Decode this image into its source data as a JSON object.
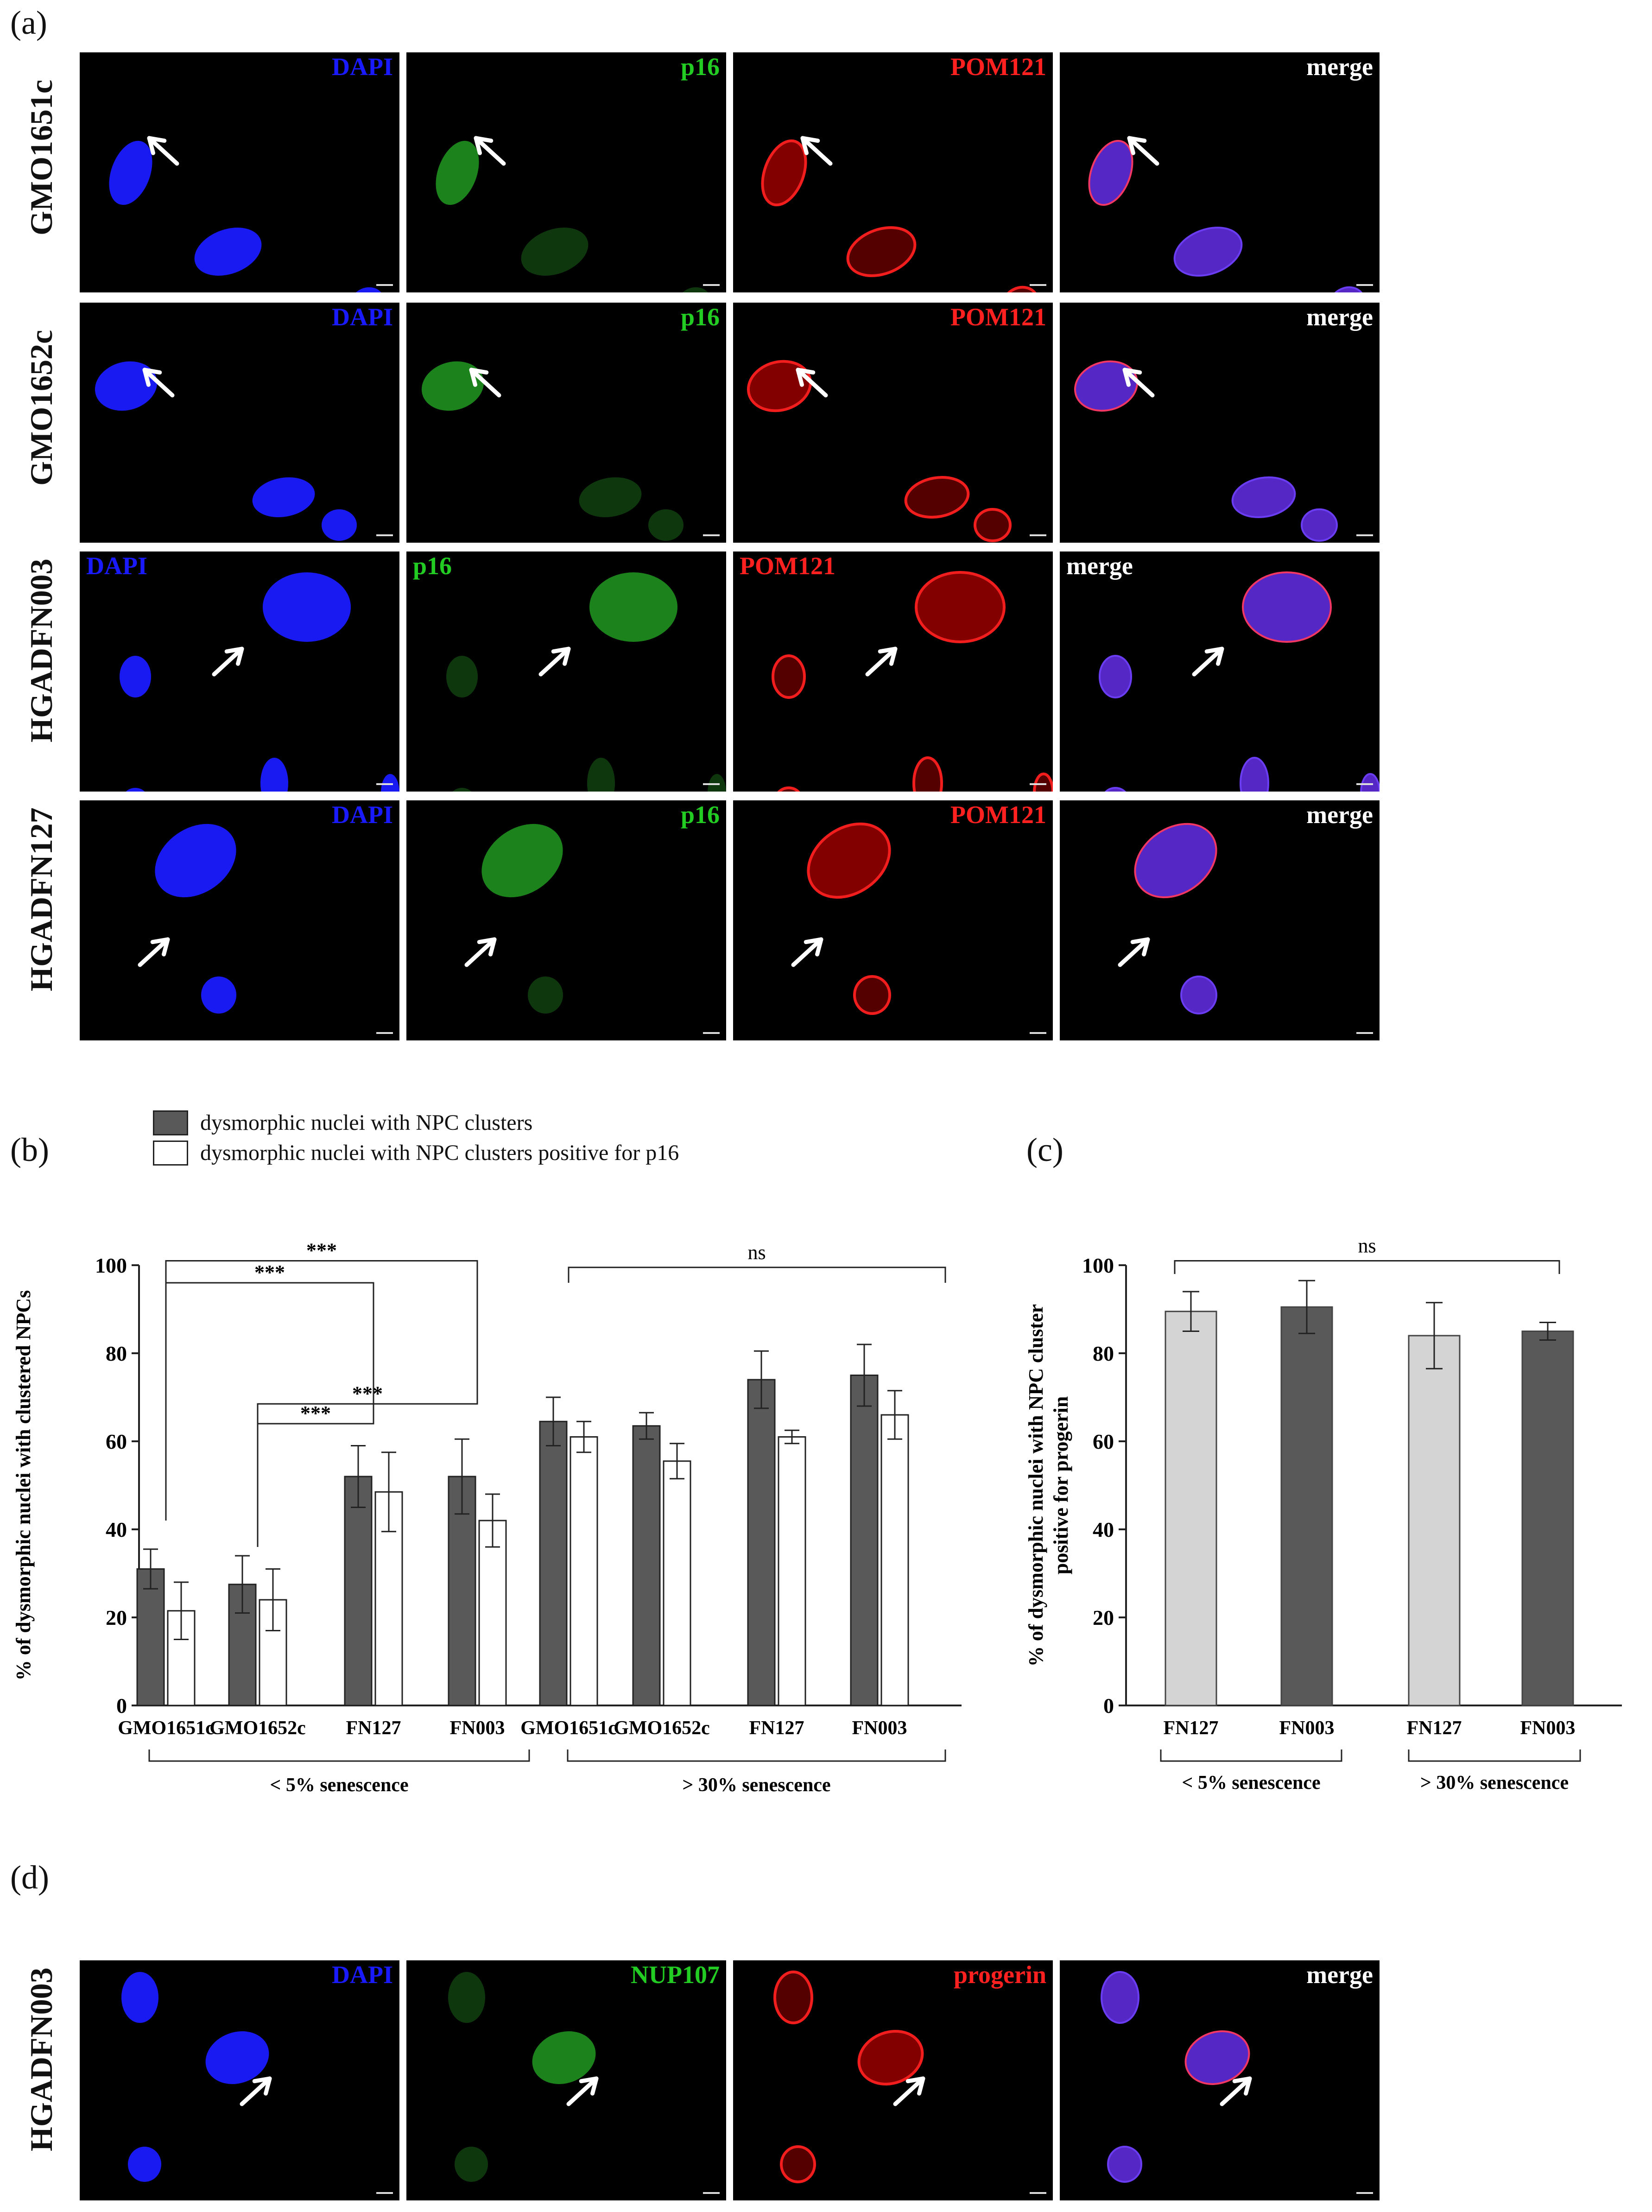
{
  "panels": {
    "a": "(a)",
    "b": "(b)",
    "c": "(c)",
    "d": "(d)"
  },
  "colors": {
    "dapi": "#2a2aff",
    "green": "#22cc22",
    "red": "#ff2020",
    "white": "#ffffff",
    "dark_bar": "#595959",
    "light_bar": "#d4d4d4"
  },
  "panel_a": {
    "rows": [
      {
        "label": "GMO1651c",
        "channels": [
          "DAPI",
          "p16",
          "POM121",
          "merge"
        ]
      },
      {
        "label": "GMO1652c",
        "channels": [
          "DAPI",
          "p16",
          "POM121",
          "merge"
        ]
      },
      {
        "label": "HGADFN003",
        "channels": [
          "DAPI",
          "p16",
          "POM121",
          "merge"
        ]
      },
      {
        "label": "HGADFN127",
        "channels": [
          "DAPI",
          "p16",
          "POM121",
          "merge"
        ]
      }
    ]
  },
  "panel_d": {
    "label": "HGADFN003",
    "channels": [
      "DAPI",
      "NUP107",
      "progerin",
      "merge"
    ]
  },
  "legend": {
    "dark": "dysmorphic nuclei with NPC clusters",
    "white": "dysmorphic nuclei with NPC clusters positive for p16"
  },
  "chart_data": [
    {
      "type": "bar",
      "ylabel": "% of dysmorphic nuclei with clustered NPCs",
      "ylim": [
        0,
        100
      ],
      "yticks": [
        0,
        20,
        40,
        60,
        80,
        100
      ],
      "categories": [
        "GMO1651c",
        "GMO1652c",
        "FN127",
        "FN003",
        "GMO1651c",
        "GMO1652c",
        "FN127",
        "FN003"
      ],
      "groups": [
        "< 5% senescence",
        "> 30% senescence"
      ],
      "series": [
        {
          "name": "dysmorphic nuclei with NPC clusters",
          "values": [
            31,
            27.5,
            52,
            52,
            64.5,
            63.5,
            74,
            75
          ],
          "errors": [
            4.5,
            6.5,
            7,
            8.5,
            5.5,
            3,
            6.5,
            7
          ]
        },
        {
          "name": "dysmorphic nuclei with NPC clusters positive for p16",
          "values": [
            21.5,
            24,
            48.5,
            42,
            61,
            55.5,
            61,
            66
          ],
          "errors": [
            6.5,
            7,
            9,
            6,
            3.5,
            4,
            1.5,
            5.5
          ]
        }
      ],
      "significance": [
        "***",
        "***",
        "***",
        "***",
        "ns"
      ]
    },
    {
      "type": "bar",
      "ylabel": "% of dysmorphic nuclei with NPC cluster positive for progerin",
      "ylim": [
        0,
        100
      ],
      "yticks": [
        0,
        20,
        40,
        60,
        80,
        100
      ],
      "categories": [
        "FN127",
        "FN003",
        "FN127",
        "FN003"
      ],
      "groups": [
        "< 5% senescence",
        "> 30% senescence"
      ],
      "values": [
        89.5,
        90.5,
        84,
        85
      ],
      "errors": [
        4.5,
        6,
        7.5,
        2
      ],
      "significance": [
        "ns"
      ]
    }
  ]
}
